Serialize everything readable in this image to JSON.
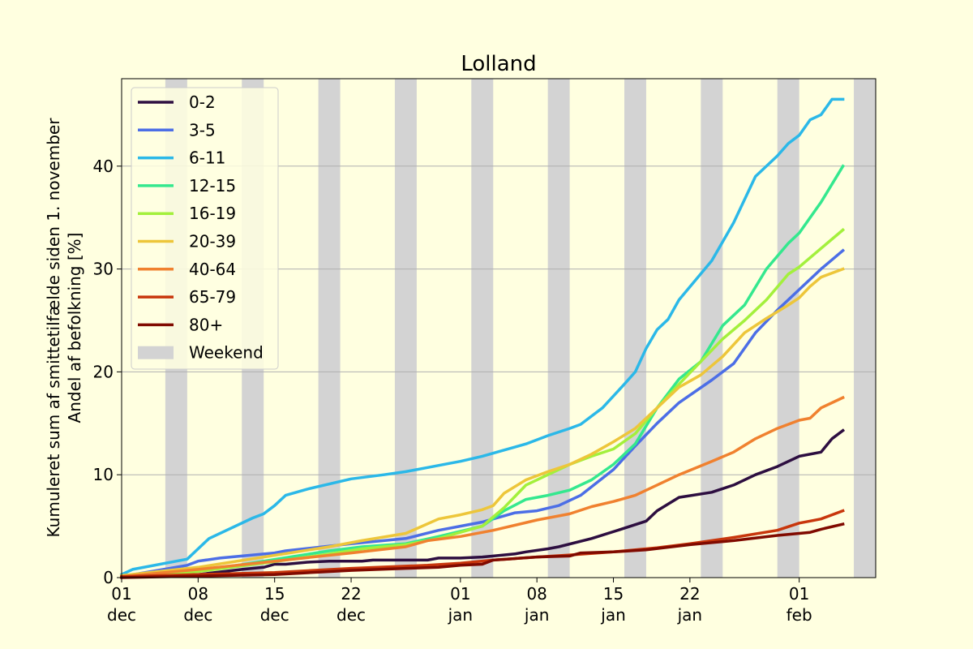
{
  "chart_data": {
    "type": "line",
    "title": "Lolland",
    "ylabel_lines": [
      "Kumuleret sum af smittetilfælde siden 1. november",
      "Andel af befolkning [%]"
    ],
    "xlabel": "",
    "x_start": "2020-12-01",
    "x_end": "2021-02-07",
    "xlim": [
      "2020-12-01",
      "2021-02-08"
    ],
    "ylim": [
      0,
      48.5
    ],
    "x_ticks": [
      {
        "date": "2020-12-01",
        "day": "01",
        "month": "dec"
      },
      {
        "date": "2020-12-08",
        "day": "08",
        "month": "dec"
      },
      {
        "date": "2020-12-15",
        "day": "15",
        "month": "dec"
      },
      {
        "date": "2020-12-22",
        "day": "22",
        "month": "dec"
      },
      {
        "date": "2021-01-01",
        "day": "01",
        "month": "jan"
      },
      {
        "date": "2021-01-08",
        "day": "08",
        "month": "jan"
      },
      {
        "date": "2021-01-15",
        "day": "15",
        "month": "jan"
      },
      {
        "date": "2021-01-22",
        "day": "22",
        "month": "jan"
      },
      {
        "date": "2021-02-01",
        "day": "01",
        "month": "feb"
      }
    ],
    "y_ticks": [
      "0",
      "10",
      "20",
      "30",
      "40"
    ],
    "grid": "y",
    "legend_position": "top-left",
    "weekend_label": "Weekend",
    "weekend_color": "#d3d3d3",
    "weekends": [
      [
        "2020-12-05",
        "2020-12-06"
      ],
      [
        "2020-12-12",
        "2020-12-13"
      ],
      [
        "2020-12-19",
        "2020-12-20"
      ],
      [
        "2020-12-26",
        "2020-12-27"
      ],
      [
        "2021-01-02",
        "2021-01-03"
      ],
      [
        "2021-01-09",
        "2021-01-10"
      ],
      [
        "2021-01-16",
        "2021-01-17"
      ],
      [
        "2021-01-23",
        "2021-01-24"
      ],
      [
        "2021-01-30",
        "2021-01-31"
      ],
      [
        "2021-02-06",
        "2021-02-07"
      ]
    ],
    "series": [
      {
        "name": "0-2",
        "color": "#2d0e40",
        "dates": [
          "2020-12-01",
          "2020-12-08",
          "2020-12-12",
          "2020-12-14",
          "2020-12-15",
          "2020-12-16",
          "2020-12-18",
          "2020-12-20",
          "2020-12-21",
          "2020-12-23",
          "2020-12-24",
          "2020-12-29",
          "2020-12-30",
          "2021-01-01",
          "2021-01-03",
          "2021-01-04",
          "2021-01-06",
          "2021-01-07",
          "2021-01-09",
          "2021-01-10",
          "2021-01-13",
          "2021-01-16",
          "2021-01-18",
          "2021-01-19",
          "2021-01-21",
          "2021-01-24",
          "2021-01-26",
          "2021-01-28",
          "2021-01-30",
          "2021-02-01",
          "2021-02-03",
          "2021-02-04",
          "2021-02-05"
        ],
        "values": [
          0.1,
          0.3,
          0.8,
          1.0,
          1.3,
          1.3,
          1.5,
          1.6,
          1.6,
          1.6,
          1.7,
          1.7,
          1.9,
          1.9,
          2.0,
          2.1,
          2.3,
          2.5,
          2.8,
          3.0,
          3.8,
          4.8,
          5.5,
          6.5,
          7.8,
          8.3,
          9.0,
          10.0,
          10.8,
          11.8,
          12.2,
          13.5,
          14.3
        ]
      },
      {
        "name": "3-5",
        "color": "#4c6ee6",
        "dates": [
          "2020-12-01",
          "2020-12-07",
          "2020-12-08",
          "2020-12-10",
          "2020-12-13",
          "2020-12-15",
          "2020-12-16",
          "2020-12-22",
          "2020-12-27",
          "2020-12-30",
          "2021-01-01",
          "2021-01-03",
          "2021-01-04",
          "2021-01-06",
          "2021-01-08",
          "2021-01-10",
          "2021-01-12",
          "2021-01-15",
          "2021-01-17",
          "2021-01-19",
          "2021-01-21",
          "2021-01-24",
          "2021-01-26",
          "2021-01-28",
          "2021-01-30",
          "2021-02-01",
          "2021-02-03",
          "2021-02-05"
        ],
        "values": [
          0.1,
          1.2,
          1.6,
          1.9,
          2.2,
          2.4,
          2.6,
          3.3,
          3.8,
          4.6,
          5.0,
          5.4,
          5.7,
          6.3,
          6.5,
          7.0,
          8.0,
          10.5,
          12.8,
          15.0,
          17.0,
          19.2,
          20.8,
          23.8,
          26.0,
          28.0,
          30.0,
          31.8
        ]
      },
      {
        "name": "6-11",
        "color": "#2bb8e8",
        "dates": [
          "2020-12-01",
          "2020-12-02",
          "2020-12-07",
          "2020-12-08",
          "2020-12-09",
          "2020-12-13",
          "2020-12-14",
          "2020-12-15",
          "2020-12-16",
          "2020-12-18",
          "2020-12-22",
          "2020-12-25",
          "2020-12-27",
          "2020-12-29",
          "2020-12-31",
          "2021-01-01",
          "2021-01-03",
          "2021-01-05",
          "2021-01-07",
          "2021-01-09",
          "2021-01-11",
          "2021-01-12",
          "2021-01-14",
          "2021-01-16",
          "2021-01-17",
          "2021-01-18",
          "2021-01-19",
          "2021-01-20",
          "2021-01-21",
          "2021-01-24",
          "2021-01-26",
          "2021-01-28",
          "2021-01-30",
          "2021-01-31",
          "2021-02-01",
          "2021-02-02",
          "2021-02-03",
          "2021-02-04",
          "2021-02-05"
        ],
        "values": [
          0.3,
          0.8,
          1.8,
          2.8,
          3.8,
          5.8,
          6.2,
          7.0,
          8.0,
          8.6,
          9.6,
          10.0,
          10.3,
          10.7,
          11.1,
          11.3,
          11.8,
          12.4,
          13.0,
          13.8,
          14.5,
          14.9,
          16.5,
          18.8,
          20.0,
          22.3,
          24.1,
          25.1,
          27.0,
          30.8,
          34.5,
          39.0,
          41.0,
          42.2,
          43.0,
          44.5,
          45.0,
          46.5,
          46.5
        ]
      },
      {
        "name": "12-15",
        "color": "#34e88e",
        "dates": [
          "2020-12-01",
          "2020-12-08",
          "2020-12-14",
          "2020-12-20",
          "2020-12-23",
          "2020-12-27",
          "2020-12-30",
          "2021-01-01",
          "2021-01-03",
          "2021-01-05",
          "2021-01-07",
          "2021-01-09",
          "2021-01-11",
          "2021-01-13",
          "2021-01-15",
          "2021-01-17",
          "2021-01-19",
          "2021-01-21",
          "2021-01-23",
          "2021-01-25",
          "2021-01-27",
          "2021-01-29",
          "2021-01-31",
          "2021-02-01",
          "2021-02-03",
          "2021-02-05"
        ],
        "values": [
          0.1,
          0.6,
          1.6,
          2.6,
          3.0,
          3.3,
          4.0,
          4.5,
          5.0,
          6.5,
          7.6,
          8.0,
          8.5,
          9.5,
          11.0,
          13.0,
          16.5,
          19.3,
          21.0,
          24.5,
          26.5,
          30.0,
          32.5,
          33.5,
          36.5,
          40.0
        ]
      },
      {
        "name": "16-19",
        "color": "#a3f03c",
        "dates": [
          "2020-12-01",
          "2020-12-08",
          "2020-12-14",
          "2020-12-20",
          "2020-12-23",
          "2020-12-27",
          "2020-12-30",
          "2021-01-01",
          "2021-01-03",
          "2021-01-05",
          "2021-01-07",
          "2021-01-09",
          "2021-01-11",
          "2021-01-13",
          "2021-01-15",
          "2021-01-17",
          "2021-01-19",
          "2021-01-21",
          "2021-01-23",
          "2021-01-25",
          "2021-01-27",
          "2021-01-29",
          "2021-01-31",
          "2021-02-01",
          "2021-02-03",
          "2021-02-05"
        ],
        "values": [
          0.1,
          0.6,
          1.4,
          2.3,
          2.8,
          3.2,
          3.8,
          4.4,
          5.0,
          6.8,
          9.0,
          10.0,
          11.0,
          11.8,
          12.5,
          14.0,
          16.5,
          18.8,
          21.0,
          23.2,
          25.0,
          27.0,
          29.5,
          30.2,
          32.0,
          33.8
        ]
      },
      {
        "name": "20-39",
        "color": "#edc63a",
        "dates": [
          "2020-12-01",
          "2020-12-08",
          "2020-12-14",
          "2020-12-20",
          "2020-12-23",
          "2020-12-27",
          "2020-12-30",
          "2021-01-01",
          "2021-01-03",
          "2021-01-04",
          "2021-01-05",
          "2021-01-07",
          "2021-01-09",
          "2021-01-11",
          "2021-01-13",
          "2021-01-15",
          "2021-01-17",
          "2021-01-19",
          "2021-01-21",
          "2021-01-23",
          "2021-01-25",
          "2021-01-27",
          "2021-01-29",
          "2021-01-31",
          "2021-02-01",
          "2021-02-02",
          "2021-02-03",
          "2021-02-05"
        ],
        "values": [
          0.2,
          1.0,
          2.0,
          3.0,
          3.6,
          4.3,
          5.7,
          6.1,
          6.6,
          7.0,
          8.2,
          9.5,
          10.3,
          11.0,
          12.0,
          13.2,
          14.5,
          16.5,
          18.5,
          19.7,
          21.5,
          23.8,
          25.2,
          26.5,
          27.2,
          28.3,
          29.2,
          30.0
        ]
      },
      {
        "name": "40-64",
        "color": "#f0812f",
        "dates": [
          "2020-12-01",
          "2020-12-08",
          "2020-12-15",
          "2020-12-22",
          "2020-12-27",
          "2020-12-29",
          "2021-01-01",
          "2021-01-04",
          "2021-01-08",
          "2021-01-11",
          "2021-01-13",
          "2021-01-15",
          "2021-01-17",
          "2021-01-19",
          "2021-01-21",
          "2021-01-24",
          "2021-01-26",
          "2021-01-28",
          "2021-01-30",
          "2021-02-01",
          "2021-02-02",
          "2021-02-03",
          "2021-02-05"
        ],
        "values": [
          0.1,
          0.8,
          1.6,
          2.4,
          3.0,
          3.6,
          4.0,
          4.6,
          5.6,
          6.2,
          6.9,
          7.4,
          8.0,
          9.0,
          10.0,
          11.3,
          12.2,
          13.5,
          14.5,
          15.3,
          15.5,
          16.5,
          17.5
        ]
      },
      {
        "name": "65-79",
        "color": "#c8360c",
        "dates": [
          "2020-12-01",
          "2020-12-15",
          "2020-12-22",
          "2020-12-29",
          "2021-01-01",
          "2021-01-04",
          "2021-01-08",
          "2021-01-11",
          "2021-01-15",
          "2021-01-19",
          "2021-01-22",
          "2021-01-26",
          "2021-01-30",
          "2021-02-01",
          "2021-02-02",
          "2021-02-03",
          "2021-02-05"
        ],
        "values": [
          0.1,
          0.5,
          0.9,
          1.2,
          1.4,
          1.7,
          2.0,
          2.2,
          2.5,
          2.9,
          3.3,
          3.9,
          4.6,
          5.3,
          5.5,
          5.7,
          6.5
        ]
      },
      {
        "name": "80+",
        "color": "#800a00",
        "dates": [
          "2020-12-01",
          "2020-12-15",
          "2020-12-22",
          "2020-12-27",
          "2020-12-30",
          "2021-01-01",
          "2021-01-03",
          "2021-01-04",
          "2021-01-08",
          "2021-01-11",
          "2021-01-12",
          "2021-01-15",
          "2021-01-18",
          "2021-01-22",
          "2021-01-26",
          "2021-01-30",
          "2021-02-01",
          "2021-02-02",
          "2021-02-03",
          "2021-02-05"
        ],
        "values": [
          0.0,
          0.3,
          0.7,
          0.9,
          1.0,
          1.2,
          1.3,
          1.7,
          2.0,
          2.1,
          2.4,
          2.5,
          2.7,
          3.2,
          3.6,
          4.1,
          4.3,
          4.4,
          4.7,
          5.2
        ]
      }
    ]
  }
}
